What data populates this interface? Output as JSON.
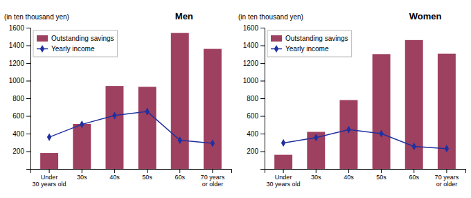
{
  "chart_data": [
    {
      "type": "bar",
      "title": "Men",
      "ylabel": "(in ten thousand yen)",
      "categories": [
        "Under\n30 years old",
        "30s",
        "40s",
        "50s",
        "60s",
        "70 years\nor older"
      ],
      "series": [
        {
          "name": "Outstanding savings",
          "type": "bar",
          "color": "#9e4060",
          "values": [
            180,
            510,
            940,
            930,
            1540,
            1360
          ]
        },
        {
          "name": "Yearly income",
          "type": "line",
          "color": "#2030a0",
          "marker": "diamond",
          "values": [
            360,
            505,
            605,
            650,
            325,
            290
          ]
        }
      ],
      "ylim": [
        0,
        1600
      ],
      "yticks": [
        200,
        400,
        600,
        800,
        1000,
        1200,
        1400,
        1600
      ],
      "grid": false,
      "legend": "upper left"
    },
    {
      "type": "bar",
      "title": "Women",
      "ylabel": "(in ten thousand yen)",
      "categories": [
        "Under\n30 years old",
        "30s",
        "40s",
        "50s",
        "60s",
        "70 years\nor older"
      ],
      "series": [
        {
          "name": "Outstanding savings",
          "type": "bar",
          "color": "#9e4060",
          "values": [
            160,
            420,
            780,
            1300,
            1460,
            1305
          ]
        },
        {
          "name": "Yearly income",
          "type": "line",
          "color": "#2030a0",
          "marker": "diamond",
          "values": [
            295,
            355,
            445,
            400,
            255,
            230
          ]
        }
      ],
      "ylim": [
        0,
        1600
      ],
      "yticks": [
        200,
        400,
        600,
        800,
        1000,
        1200,
        1400,
        1600
      ],
      "grid": false,
      "legend": "upper left"
    }
  ]
}
